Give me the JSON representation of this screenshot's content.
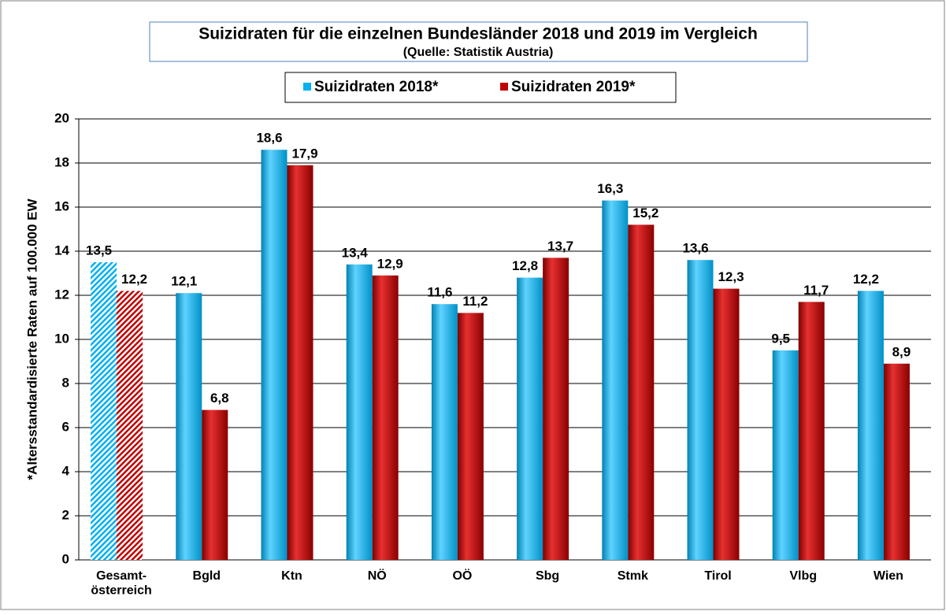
{
  "chart_data": {
    "type": "bar",
    "title": "Suizidraten für die einzelnen Bundesländer 2018 und 2019 im Vergleich",
    "subtitle": "(Quelle: Statistik Austria)",
    "y_label": "*Altersstandardisierte Raten auf 100.000 EW",
    "categories": [
      "Gesamt-\nösterreich",
      "Bgld",
      "Ktn",
      "NÖ",
      "OÖ",
      "Sbg",
      "Stmk",
      "Tirol",
      "Vlbg",
      "Wien"
    ],
    "series": [
      {
        "name": "Suizidraten 2018*",
        "color": "#00b0f0",
        "values": [
          13.5,
          12.1,
          18.6,
          13.4,
          11.6,
          12.8,
          16.3,
          13.6,
          9.5,
          12.2
        ],
        "value_labels": [
          "13,5",
          "12,1",
          "18,6",
          "13,4",
          "11,6",
          "12,8",
          "16,3",
          "13,6",
          "9,5",
          "12,2"
        ]
      },
      {
        "name": "Suizidraten 2019*",
        "color": "#c00000",
        "values": [
          12.2,
          6.8,
          17.9,
          12.9,
          11.2,
          13.7,
          15.2,
          12.3,
          11.7,
          8.9
        ],
        "value_labels": [
          "12,2",
          "6,8",
          "17,9",
          "12,9",
          "11,2",
          "13,7",
          "15,2",
          "12,3",
          "11,7",
          "8,9"
        ]
      }
    ],
    "hatched_index": 0,
    "ylim": [
      0,
      20
    ],
    "yticks": [
      0,
      2,
      4,
      6,
      8,
      10,
      12,
      14,
      16,
      18,
      20
    ],
    "grid": true,
    "legend": "top"
  }
}
